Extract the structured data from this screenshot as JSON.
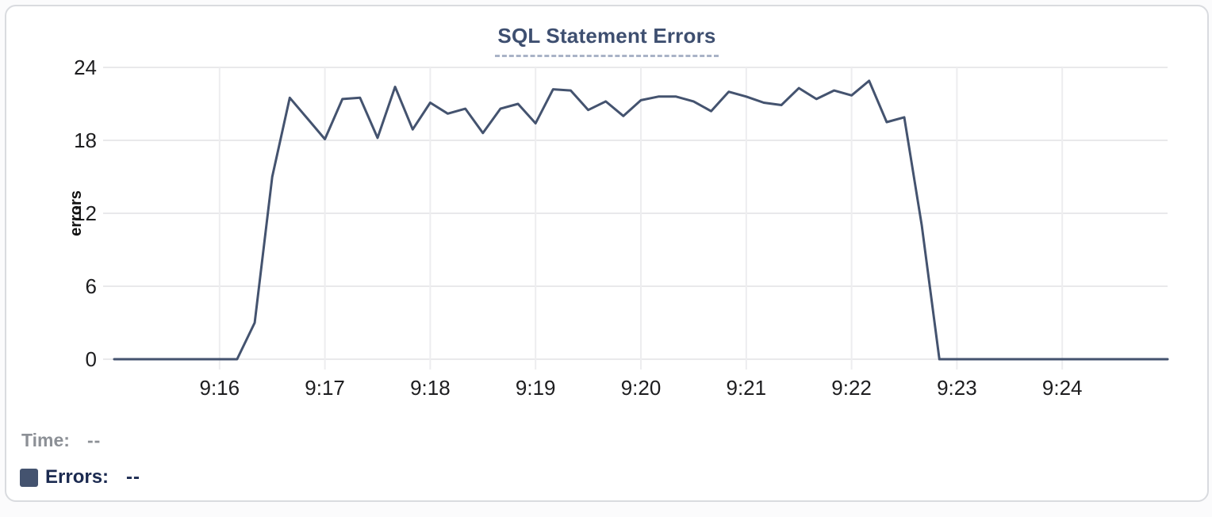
{
  "card": {
    "title": "SQL Statement Errors"
  },
  "chart_data": {
    "type": "line",
    "title": "SQL Statement Errors",
    "xlabel": "",
    "ylabel": "errors",
    "x_start": "9:15:00",
    "x_end": "9:25:00",
    "x_step_seconds": 10,
    "x_tick_labels": [
      "9:16",
      "9:17",
      "9:18",
      "9:19",
      "9:20",
      "9:21",
      "9:22",
      "9:23",
      "9:24"
    ],
    "y_ticks": [
      0,
      6,
      12,
      18,
      24
    ],
    "ylim": [
      0,
      24
    ],
    "grid": true,
    "legend_position": "none",
    "line_color": "#44536F",
    "series": [
      {
        "name": "Errors",
        "values": [
          0,
          0,
          0,
          0,
          0,
          0,
          0,
          0,
          3,
          15,
          21.5,
          19.8,
          18.1,
          21.4,
          21.5,
          18.2,
          22.4,
          18.9,
          21.1,
          20.2,
          20.6,
          18.6,
          20.6,
          21,
          19.4,
          22.2,
          22.1,
          20.5,
          21.2,
          20,
          21.3,
          21.6,
          21.6,
          21.2,
          20.4,
          22,
          21.6,
          21.1,
          20.9,
          22.3,
          21.4,
          22.1,
          21.7,
          22.9,
          19.5,
          19.9,
          11,
          0,
          0,
          0,
          0,
          0,
          0,
          0,
          0,
          0,
          0,
          0,
          0,
          0,
          0
        ]
      }
    ]
  },
  "tooltip": {
    "time_label": "Time:",
    "time_value": "--",
    "errors_label": "Errors:",
    "errors_value": "--",
    "swatch_color": "#44536F"
  },
  "colors": {
    "line": "#44536F",
    "title": "#3E4F70",
    "grid_h": "#E9E9EB",
    "grid_v": "#EDEDEF",
    "axis_text": "#1D1D1F",
    "muted_text": "#8C9096",
    "legend_text": "#1B2A50"
  }
}
